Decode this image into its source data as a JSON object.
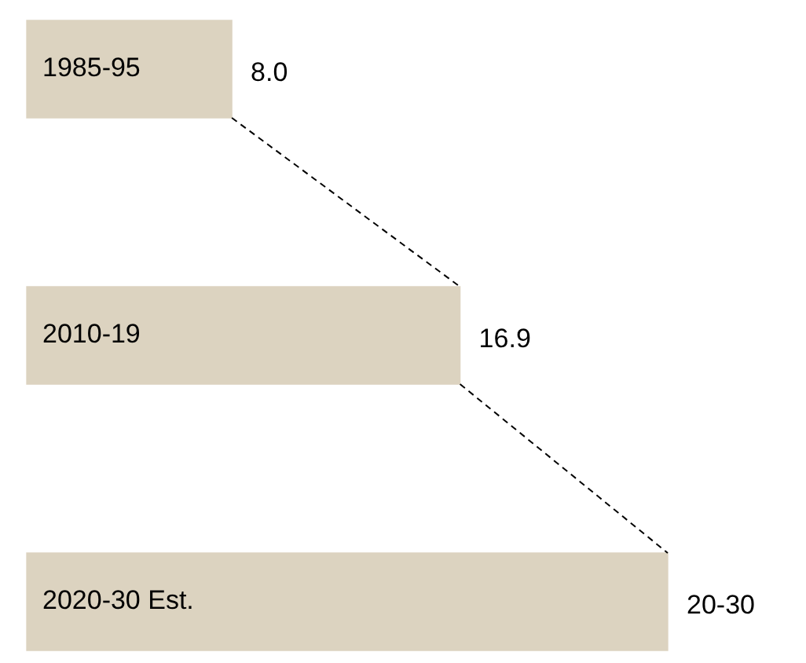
{
  "chart_data": {
    "type": "bar",
    "orientation": "horizontal",
    "categories": [
      "1985-95",
      "2010-19",
      "2020-30 Est."
    ],
    "values": [
      8.0,
      16.9,
      25
    ],
    "value_labels": [
      "8.0",
      "16.9",
      "20-30"
    ],
    "color": "#dcd3c0",
    "tick_labels": false
  }
}
